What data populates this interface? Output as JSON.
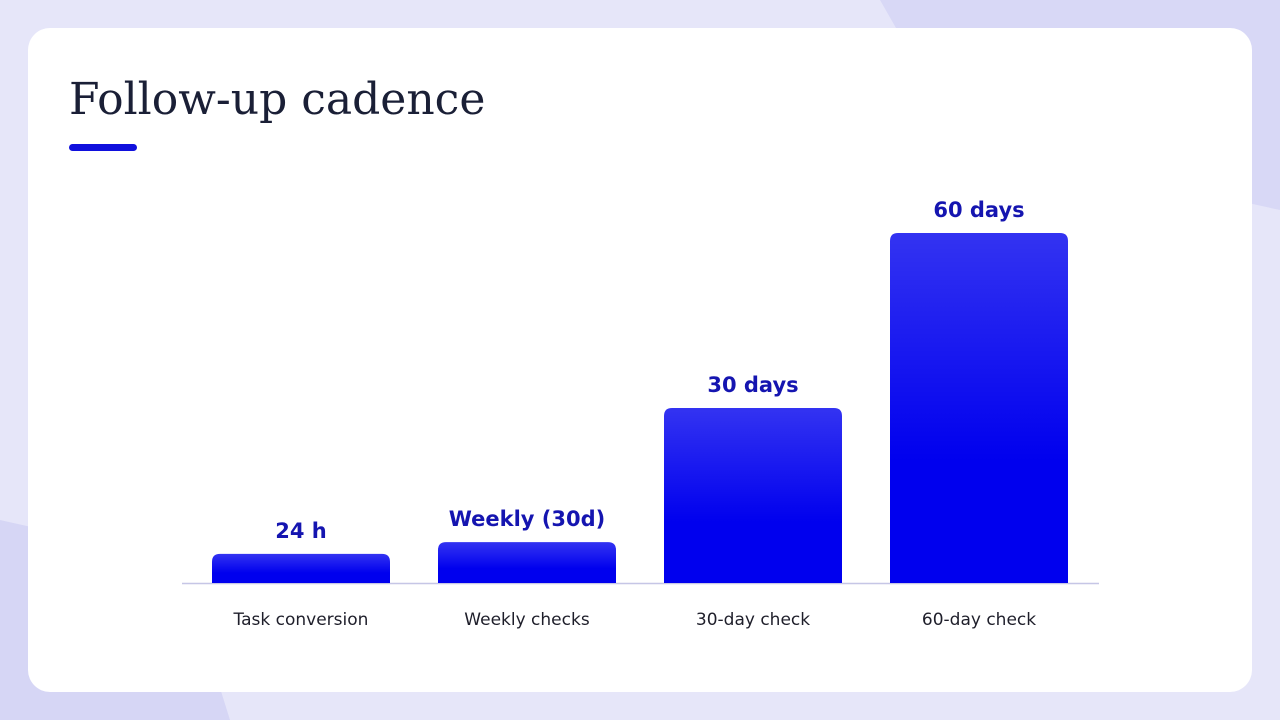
{
  "chart_data": {
    "type": "bar",
    "title": "Follow-up cadence",
    "categories": [
      "Task conversion",
      "Weekly checks",
      "30-day check",
      "60-day check"
    ],
    "values": [
      5,
      7,
      30,
      60
    ],
    "annotations": [
      "24 h",
      "Weekly (30d)",
      "30 days",
      "60 days"
    ],
    "color": "#0000ee",
    "ylim": [
      0,
      60
    ]
  }
}
